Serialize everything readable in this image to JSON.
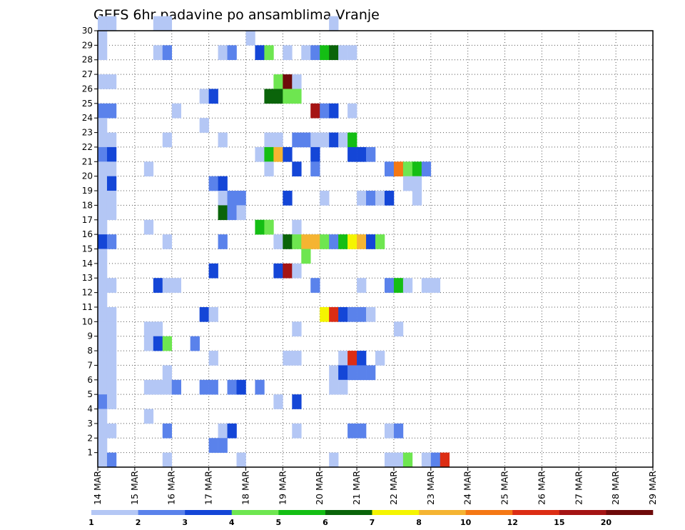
{
  "chart_data": {
    "type": "heatmap",
    "title": "GEFS 6hr padavine po ansamblima Vranje",
    "x_tick_labels": [
      "14 MAR",
      "15 MAR",
      "16 MAR",
      "17 MAR",
      "18 MAR",
      "19 MAR",
      "20 MAR",
      "21 MAR",
      "22 MAR",
      "23 MAR",
      "24 MAR",
      "25 MAR",
      "26 MAR",
      "27 MAR",
      "28 MAR",
      "29 MAR"
    ],
    "x_steps_per_day": 4,
    "y_tick_labels": [
      "1",
      "2",
      "3",
      "4",
      "5",
      "6",
      "7",
      "8",
      "9",
      "10",
      "11",
      "12",
      "13",
      "14",
      "15",
      "16",
      "17",
      "18",
      "19",
      "20",
      "21",
      "22",
      "23",
      "24",
      "25",
      "26",
      "27",
      "28",
      "29",
      "30"
    ],
    "ylim": [
      0,
      30
    ],
    "grid": true,
    "colorbar": {
      "labels": [
        "1",
        "2",
        "3",
        "4",
        "5",
        "6",
        "7",
        "8",
        "10",
        "12",
        "15",
        "20"
      ],
      "colors": [
        "#b4c7f5",
        "#5a82eb",
        "#1446d7",
        "#6ee650",
        "#14be14",
        "#0a640a",
        "#f5f500",
        "#f5b432",
        "#f57814",
        "#dc2d14",
        "#a51414",
        "#6e0a0a"
      ]
    },
    "cells_note": "each cell: [member, step index from 14 MAR 00 (6h), color class index 0-11]",
    "cells": [
      [
        30,
        0,
        0
      ],
      [
        30,
        1,
        0
      ],
      [
        30,
        6,
        0
      ],
      [
        30,
        7,
        0
      ],
      [
        30,
        25,
        0
      ],
      [
        29,
        0,
        0
      ],
      [
        29,
        16,
        0
      ],
      [
        28,
        0,
        0
      ],
      [
        28,
        6,
        0
      ],
      [
        28,
        7,
        1
      ],
      [
        28,
        13,
        0
      ],
      [
        28,
        14,
        1
      ],
      [
        28,
        17,
        2
      ],
      [
        28,
        18,
        3
      ],
      [
        28,
        20,
        0
      ],
      [
        28,
        22,
        0
      ],
      [
        28,
        23,
        1
      ],
      [
        28,
        24,
        4
      ],
      [
        28,
        25,
        5
      ],
      [
        28,
        26,
        0
      ],
      [
        28,
        27,
        0
      ],
      [
        26,
        0,
        0
      ],
      [
        26,
        1,
        0
      ],
      [
        26,
        19,
        3
      ],
      [
        26,
        20,
        11
      ],
      [
        26,
        21,
        0
      ],
      [
        25,
        11,
        0
      ],
      [
        25,
        12,
        2
      ],
      [
        25,
        18,
        5
      ],
      [
        25,
        19,
        5
      ],
      [
        25,
        20,
        3
      ],
      [
        25,
        21,
        3
      ],
      [
        24,
        0,
        1
      ],
      [
        24,
        1,
        1
      ],
      [
        24,
        8,
        0
      ],
      [
        24,
        23,
        10
      ],
      [
        24,
        24,
        1
      ],
      [
        24,
        25,
        2
      ],
      [
        24,
        27,
        0
      ],
      [
        23,
        0,
        0
      ],
      [
        23,
        11,
        0
      ],
      [
        22,
        0,
        0
      ],
      [
        22,
        1,
        0
      ],
      [
        22,
        7,
        0
      ],
      [
        22,
        13,
        0
      ],
      [
        22,
        18,
        0
      ],
      [
        22,
        19,
        0
      ],
      [
        22,
        21,
        1
      ],
      [
        22,
        22,
        1
      ],
      [
        22,
        23,
        0
      ],
      [
        22,
        24,
        0
      ],
      [
        22,
        25,
        2
      ],
      [
        22,
        26,
        0
      ],
      [
        22,
        27,
        4
      ],
      [
        21,
        0,
        1
      ],
      [
        21,
        1,
        2
      ],
      [
        21,
        17,
        0
      ],
      [
        21,
        18,
        4
      ],
      [
        21,
        19,
        7
      ],
      [
        21,
        20,
        2
      ],
      [
        21,
        23,
        2
      ],
      [
        21,
        27,
        2
      ],
      [
        21,
        28,
        2
      ],
      [
        21,
        29,
        1
      ],
      [
        20,
        0,
        0
      ],
      [
        20,
        1,
        0
      ],
      [
        20,
        5,
        0
      ],
      [
        20,
        18,
        0
      ],
      [
        20,
        21,
        2
      ],
      [
        20,
        23,
        1
      ],
      [
        20,
        31,
        1
      ],
      [
        20,
        32,
        8
      ],
      [
        20,
        33,
        3
      ],
      [
        20,
        34,
        4
      ],
      [
        20,
        35,
        1
      ],
      [
        19,
        0,
        0
      ],
      [
        19,
        1,
        2
      ],
      [
        19,
        12,
        1
      ],
      [
        19,
        13,
        2
      ],
      [
        19,
        33,
        0
      ],
      [
        19,
        34,
        0
      ],
      [
        18,
        0,
        0
      ],
      [
        18,
        1,
        0
      ],
      [
        18,
        13,
        0
      ],
      [
        18,
        14,
        1
      ],
      [
        18,
        15,
        1
      ],
      [
        18,
        20,
        2
      ],
      [
        18,
        24,
        0
      ],
      [
        18,
        28,
        0
      ],
      [
        18,
        29,
        1
      ],
      [
        18,
        30,
        0
      ],
      [
        18,
        31,
        2
      ],
      [
        18,
        34,
        0
      ],
      [
        17,
        0,
        0
      ],
      [
        17,
        1,
        0
      ],
      [
        17,
        13,
        5
      ],
      [
        17,
        14,
        1
      ],
      [
        17,
        15,
        0
      ],
      [
        16,
        0,
        0
      ],
      [
        16,
        5,
        0
      ],
      [
        16,
        17,
        4
      ],
      [
        16,
        18,
        3
      ],
      [
        16,
        21,
        0
      ],
      [
        15,
        0,
        2
      ],
      [
        15,
        1,
        1
      ],
      [
        15,
        7,
        0
      ],
      [
        15,
        13,
        1
      ],
      [
        15,
        19,
        0
      ],
      [
        15,
        20,
        5
      ],
      [
        15,
        21,
        3
      ],
      [
        15,
        22,
        7
      ],
      [
        15,
        23,
        7
      ],
      [
        15,
        24,
        3
      ],
      [
        15,
        25,
        1
      ],
      [
        15,
        26,
        4
      ],
      [
        15,
        27,
        6
      ],
      [
        15,
        28,
        7
      ],
      [
        15,
        29,
        2
      ],
      [
        15,
        30,
        3
      ],
      [
        14,
        0,
        0
      ],
      [
        14,
        22,
        3
      ],
      [
        13,
        0,
        0
      ],
      [
        13,
        12,
        2
      ],
      [
        13,
        19,
        2
      ],
      [
        13,
        20,
        10
      ],
      [
        13,
        21,
        0
      ],
      [
        12,
        0,
        0
      ],
      [
        12,
        1,
        0
      ],
      [
        12,
        6,
        2
      ],
      [
        12,
        7,
        0
      ],
      [
        12,
        8,
        0
      ],
      [
        12,
        23,
        1
      ],
      [
        12,
        28,
        0
      ],
      [
        12,
        31,
        1
      ],
      [
        12,
        32,
        4
      ],
      [
        12,
        33,
        0
      ],
      [
        12,
        35,
        0
      ],
      [
        12,
        36,
        0
      ],
      [
        11,
        0,
        0
      ],
      [
        10,
        0,
        0
      ],
      [
        10,
        1,
        0
      ],
      [
        10,
        11,
        2
      ],
      [
        10,
        12,
        0
      ],
      [
        10,
        24,
        6
      ],
      [
        10,
        25,
        9
      ],
      [
        10,
        26,
        2
      ],
      [
        10,
        27,
        1
      ],
      [
        10,
        28,
        1
      ],
      [
        10,
        29,
        0
      ],
      [
        9,
        0,
        0
      ],
      [
        9,
        1,
        0
      ],
      [
        9,
        5,
        0
      ],
      [
        9,
        6,
        0
      ],
      [
        9,
        21,
        0
      ],
      [
        9,
        32,
        0
      ],
      [
        8,
        0,
        0
      ],
      [
        8,
        1,
        0
      ],
      [
        8,
        5,
        0
      ],
      [
        8,
        6,
        2
      ],
      [
        8,
        7,
        3
      ],
      [
        8,
        10,
        1
      ],
      [
        7,
        0,
        0
      ],
      [
        7,
        1,
        0
      ],
      [
        7,
        12,
        0
      ],
      [
        7,
        20,
        0
      ],
      [
        7,
        21,
        0
      ],
      [
        7,
        26,
        0
      ],
      [
        7,
        27,
        9
      ],
      [
        7,
        28,
        2
      ],
      [
        7,
        30,
        0
      ],
      [
        6,
        0,
        0
      ],
      [
        6,
        1,
        0
      ],
      [
        6,
        7,
        0
      ],
      [
        6,
        25,
        0
      ],
      [
        6,
        26,
        2
      ],
      [
        6,
        27,
        1
      ],
      [
        6,
        28,
        1
      ],
      [
        6,
        29,
        1
      ],
      [
        5,
        0,
        0
      ],
      [
        5,
        1,
        0
      ],
      [
        5,
        5,
        0
      ],
      [
        5,
        6,
        0
      ],
      [
        5,
        7,
        0
      ],
      [
        5,
        8,
        1
      ],
      [
        5,
        11,
        1
      ],
      [
        5,
        12,
        1
      ],
      [
        5,
        14,
        1
      ],
      [
        5,
        15,
        2
      ],
      [
        5,
        17,
        1
      ],
      [
        5,
        25,
        0
      ],
      [
        5,
        26,
        0
      ],
      [
        4,
        0,
        1
      ],
      [
        4,
        1,
        0
      ],
      [
        4,
        19,
        0
      ],
      [
        4,
        21,
        2
      ],
      [
        3,
        0,
        0
      ],
      [
        3,
        5,
        0
      ],
      [
        2,
        0,
        0
      ],
      [
        2,
        1,
        0
      ],
      [
        2,
        7,
        1
      ],
      [
        2,
        13,
        0
      ],
      [
        2,
        14,
        2
      ],
      [
        2,
        21,
        0
      ],
      [
        2,
        27,
        1
      ],
      [
        2,
        28,
        1
      ],
      [
        2,
        31,
        0
      ],
      [
        2,
        32,
        1
      ],
      [
        1,
        0,
        0
      ],
      [
        1,
        12,
        1
      ],
      [
        1,
        13,
        1
      ],
      [
        0,
        0,
        0
      ],
      [
        0,
        1,
        1
      ],
      [
        0,
        7,
        0
      ],
      [
        0,
        15,
        0
      ],
      [
        0,
        25,
        0
      ],
      [
        0,
        31,
        0
      ],
      [
        0,
        32,
        0
      ],
      [
        0,
        33,
        3
      ],
      [
        0,
        35,
        0
      ],
      [
        0,
        36,
        1
      ],
      [
        0,
        37,
        9
      ]
    ]
  }
}
